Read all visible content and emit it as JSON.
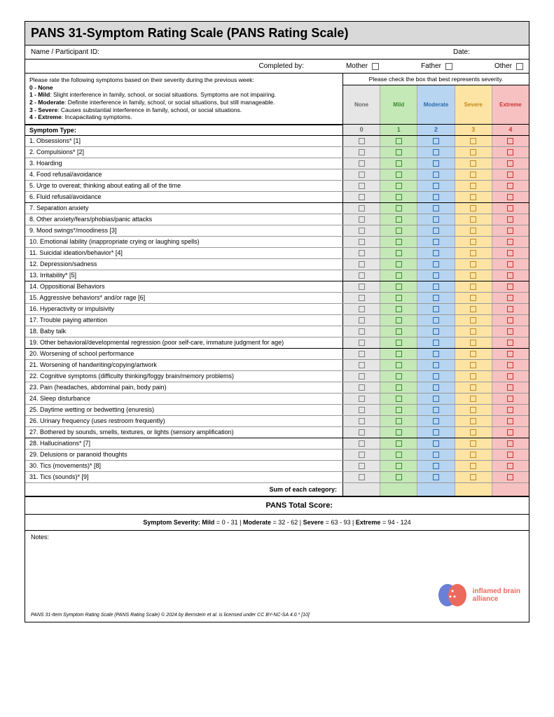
{
  "title": "PANS 31-Symptom Rating Scale (PANS Rating Scale)",
  "header": {
    "name_label": "Name / Participant ID:",
    "date_label": "Date:",
    "completed_by_label": "Completed by:",
    "options": [
      "Mother",
      "Father",
      "Other"
    ]
  },
  "instructions": {
    "lead": "Please rate the following symptoms based on their severity during the previous week:",
    "lines": [
      {
        "b": "0 - None",
        "t": ""
      },
      {
        "b": "1 - Mild",
        "t": ": Slight interference in family, school, or social situations. Symptoms are not impairing."
      },
      {
        "b": "2 - Moderate",
        "t": ": Definite interference in family, school, or social situations, but still manageable."
      },
      {
        "b": "3 - Severe",
        "t": ": Causes substantial interference in family, school, or social situations."
      },
      {
        "b": "4 - Extreme",
        "t": ": Incapacitating symptoms."
      }
    ],
    "check_prompt": "Please check the box that best represents severity."
  },
  "columns": [
    {
      "label": "None",
      "num": "0",
      "bg": "#e6e6e6",
      "text": "#666666",
      "box": "#808080"
    },
    {
      "label": "Mild",
      "num": "1",
      "bg": "#c5e8b7",
      "text": "#3a8a2e",
      "box": "#3a8a2e"
    },
    {
      "label": "Moderate",
      "num": "2",
      "bg": "#b7d5f0",
      "text": "#2e6bb0",
      "box": "#2e6bb0"
    },
    {
      "label": "Severe",
      "num": "3",
      "bg": "#fde4a5",
      "text": "#c28a1a",
      "box": "#c28a1a"
    },
    {
      "label": "Extreme",
      "num": "4",
      "bg": "#f7c1c1",
      "text": "#cc3333",
      "box": "#cc3333"
    }
  ],
  "symptom_header": "Symptom Type:",
  "symptoms": [
    "1. Obsessions* [1]",
    "2. Compulsions* [2]",
    "3. Hoarding",
    "4. Food refusal/avoidance",
    "5. Urge to overeat; thinking about eating all of the time",
    "6. Fluid refusal/avoidance",
    "7. Separation anxiety",
    "8. Other anxiety/fears/phobias/panic attacks",
    "9. Mood swings*/moodiness [3]",
    "10. Emotional lability (inappropriate crying or laughing spells)",
    "11. Suicidal ideation/behavior* [4]",
    "12. Depression/sadness",
    "13. Irritability* [5]",
    "14. Oppositional Behaviors",
    "15. Aggressive behaviors* and/or rage [6]",
    "16. Hyperactivity or impulsivity",
    "17. Trouble paying attention",
    "18. Baby talk",
    "19. Other behavioral/developmental regression (poor self-care, immature judgment for age)",
    "20. Worsening of school performance",
    "21. Worsening of handwriting/copying/artwork",
    "22. Cognitive symptoms (difficulty thinking/foggy brain/memory problems)",
    "23. Pain (headaches, abdominal pain, body pain)",
    "24. Sleep disturbance",
    "25. Daytime wetting or bedwetting (enuresis)",
    "26. Urinary frequency (uses restroom frequently)",
    "27. Bothered by sounds, smells, textures, or lights (sensory amplification)",
    "28. Hallucinations* [7]",
    "29. Delusions or paranoid thoughts",
    "30. Tics (movements)* [8]",
    "31. Tics (sounds)* [9]"
  ],
  "heavy_after": [
    6,
    13,
    19,
    27
  ],
  "sum_label": "Sum of each category:",
  "total_label": "PANS Total Score:",
  "severity_key": {
    "prefix": "Symptom Severity:",
    "items": [
      "Mild = 0 - 31",
      "Moderate = 32 - 62",
      "Severe = 63 - 93",
      "Extreme = 94 - 124"
    ]
  },
  "notes_label": "Notes:",
  "logo": {
    "line1": "inflamed brain",
    "line2": "alliance",
    "color_left": "#6b7fd7",
    "color_right": "#ec6a5c"
  },
  "citation": "PANS 31-Item Symptom Rating Scale (PANS Rating Scale) © 2024 by Bernstein et al. is licensed under CC BY-NC-SA 4.0.* [10]"
}
